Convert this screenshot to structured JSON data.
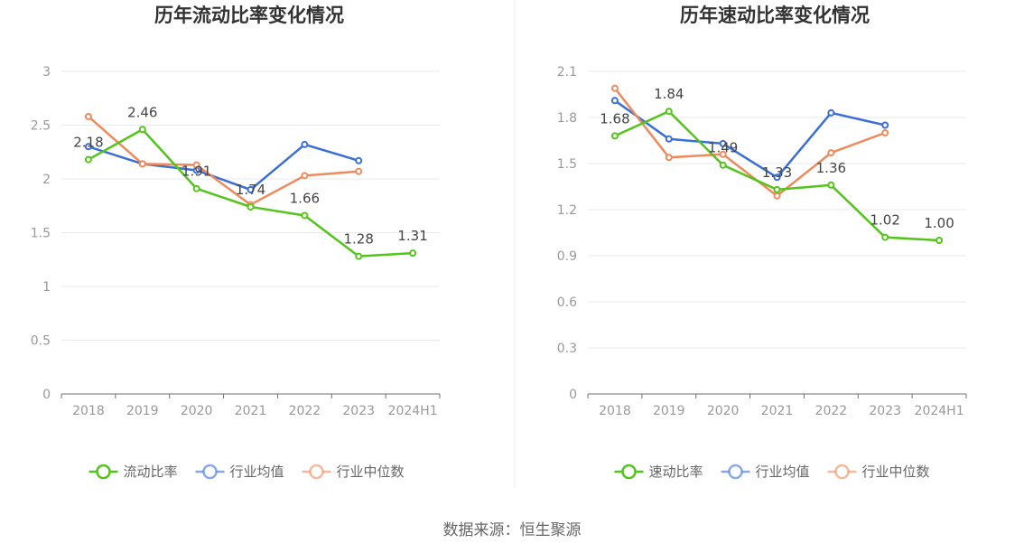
{
  "source": "数据来源：恒生聚源",
  "chart_data": [
    {
      "type": "line",
      "title": "历年流动比率变化情况",
      "categories": [
        "2018",
        "2019",
        "2020",
        "2021",
        "2022",
        "2023",
        "2024H1"
      ],
      "ylim": [
        0,
        3
      ],
      "yticks": [
        "0",
        "0.5",
        "1",
        "1.5",
        "2",
        "2.5",
        "3"
      ],
      "grid": true,
      "legend_position": "bottom-center",
      "series": [
        {
          "name": "流动比率",
          "color": "#52c41a",
          "values": [
            2.18,
            2.46,
            1.91,
            1.74,
            1.66,
            1.28,
            1.31
          ],
          "labels": [
            "2.18",
            "2.46",
            "1.91",
            "1.74",
            "1.66",
            "1.28",
            "1.31"
          ]
        },
        {
          "name": "行业均值",
          "color": "#3b6fd6",
          "values": [
            2.3,
            2.14,
            2.08,
            1.9,
            2.32,
            2.17,
            null
          ]
        },
        {
          "name": "行业中位数",
          "color": "#ee8a5b",
          "values": [
            2.58,
            2.14,
            2.13,
            1.76,
            2.03,
            2.07,
            null
          ]
        }
      ]
    },
    {
      "type": "line",
      "title": "历年速动比率变化情况",
      "categories": [
        "2018",
        "2019",
        "2020",
        "2021",
        "2022",
        "2023",
        "2024H1"
      ],
      "ylim": [
        0,
        2.1
      ],
      "yticks": [
        "0",
        "0.3",
        "0.6",
        "0.9",
        "1.2",
        "1.5",
        "1.8",
        "2.1"
      ],
      "grid": true,
      "legend_position": "bottom-center",
      "series": [
        {
          "name": "速动比率",
          "color": "#52c41a",
          "values": [
            1.68,
            1.84,
            1.49,
            1.33,
            1.36,
            1.02,
            1.0
          ],
          "labels": [
            "1.68",
            "1.84",
            "1.49",
            "1.33",
            "1.36",
            "1.02",
            "1.00"
          ]
        },
        {
          "name": "行业均值",
          "color": "#3b6fd6",
          "values": [
            1.91,
            1.66,
            1.63,
            1.41,
            1.83,
            1.75,
            null
          ]
        },
        {
          "name": "行业中位数",
          "color": "#ee8a5b",
          "values": [
            1.99,
            1.54,
            1.56,
            1.29,
            1.57,
            1.7,
            null
          ]
        }
      ]
    }
  ]
}
